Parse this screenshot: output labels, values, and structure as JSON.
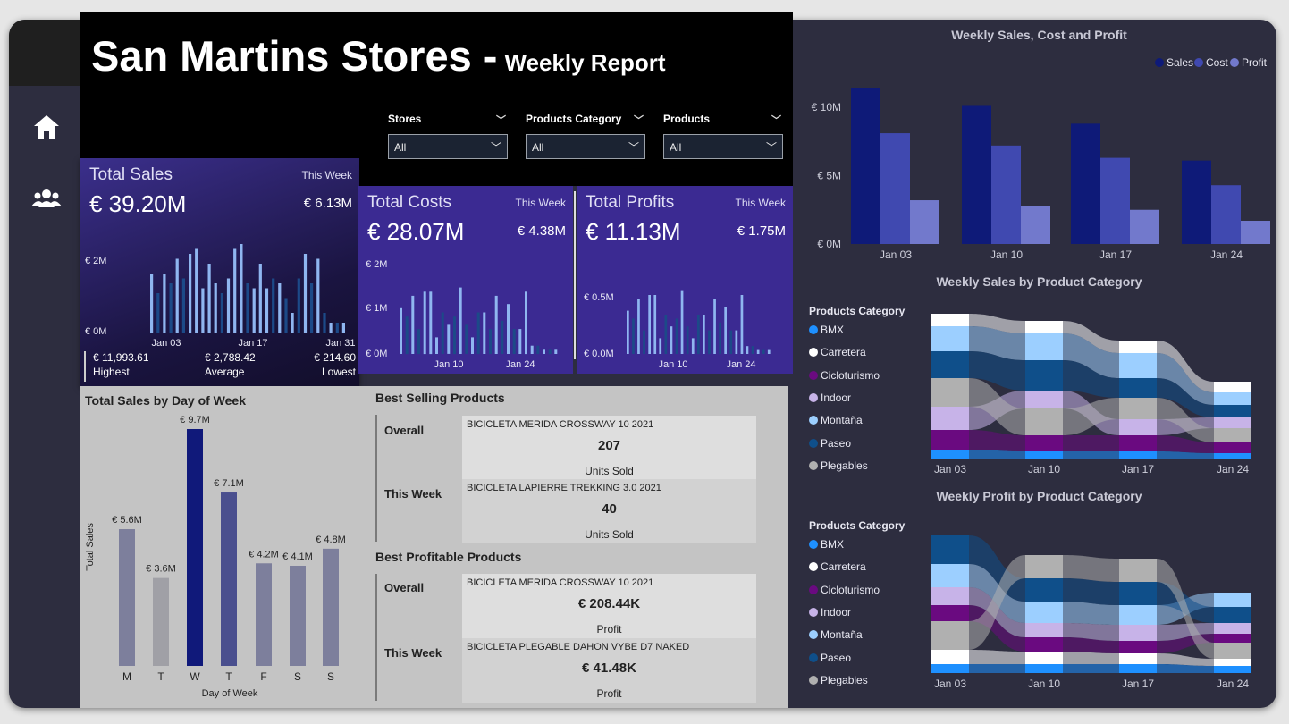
{
  "nav": {
    "home_icon": "home-icon",
    "people_icon": "people-icon"
  },
  "header": {
    "title": "San Martins Stores -",
    "subtitle": "Weekly Report"
  },
  "slicers": [
    {
      "label": "Stores",
      "value": "All"
    },
    {
      "label": "Products Category",
      "value": "All"
    },
    {
      "label": "Products",
      "value": "All"
    }
  ],
  "kpis": {
    "sales": {
      "name": "Total Sales",
      "period": "This Week",
      "total": "€ 39.20M",
      "week": "€ 6.13M",
      "y_ticks": [
        "€ 2M",
        "€ 0M"
      ],
      "x_ticks": [
        "Jan 03",
        "Jan 17",
        "Jan 31"
      ],
      "bars": [
        0.6,
        0.4,
        0.6,
        0.5,
        0.75,
        0.55,
        0.8,
        0.85,
        0.45,
        0.7,
        0.5,
        0.4,
        0.55,
        0.85,
        0.9,
        0.5,
        0.45,
        0.7,
        0.45,
        0.55,
        0.5,
        0.35,
        0.2,
        0.55,
        0.8,
        0.5,
        0.75,
        0.2,
        0.1,
        0.1,
        0.1
      ]
    },
    "costs": {
      "name": "Total Costs",
      "period": "This Week",
      "total": "€ 28.07M",
      "week": "€ 4.38M",
      "y_ticks": [
        "€ 2M",
        "€ 1M",
        "€ 0M"
      ],
      "x_ticks": [
        "Jan 10",
        "Jan 24"
      ],
      "bars": [
        0.55,
        0.45,
        0.7,
        0.3,
        0.75,
        0.75,
        0.2,
        0.5,
        0.35,
        0.45,
        0.8,
        0.35,
        0.2,
        0.5,
        0.5,
        0.3,
        0.7,
        0.4,
        0.6,
        0.3,
        0.3,
        0.75,
        0.1,
        0.1,
        0.05,
        0.05,
        0.05
      ]
    },
    "profits": {
      "name": "Total Profits",
      "period": "This Week",
      "total": "€ 11.13M",
      "week": "€ 1.75M",
      "y_ticks": [
        "€ 0.5M",
        "€ 0.0M"
      ],
      "x_ticks": [
        "Jan 10",
        "Jan 24"
      ],
      "bars": [
        0.55,
        0.45,
        0.7,
        0.3,
        0.75,
        0.75,
        0.2,
        0.5,
        0.35,
        0.45,
        0.8,
        0.35,
        0.2,
        0.5,
        0.5,
        0.3,
        0.7,
        0.4,
        0.6,
        0.3,
        0.3,
        0.75,
        0.1,
        0.1,
        0.05,
        0.05,
        0.05
      ]
    }
  },
  "stats": {
    "highest": "€ 11,993.61",
    "highest_label": "Highest",
    "average": "€ 2,788.42",
    "average_label": "Average",
    "lowest": "€ 214.60",
    "lowest_label": "Lowest"
  },
  "dow": {
    "title": "Total Sales by Day of Week",
    "ylabel": "Total Sales",
    "xlabel": "Day of Week",
    "days": [
      "M",
      "T",
      "W",
      "T",
      "F",
      "S",
      "S"
    ],
    "labels": [
      "€ 5.6M",
      "€ 3.6M",
      "€ 9.7M",
      "€ 7.1M",
      "€ 4.2M",
      "€ 4.1M",
      "€ 4.8M"
    ],
    "values": [
      5.6,
      3.6,
      9.7,
      7.1,
      4.2,
      4.1,
      4.8
    ],
    "colors": [
      "#7d7f9c",
      "#a0a0a6",
      "#10197a",
      "#4a4f8e",
      "#7d7f9c",
      "#7d7f9c",
      "#7d7f9c"
    ]
  },
  "best_selling": {
    "title": "Best Selling Products",
    "overall_label": "Overall",
    "overall_product": "BICICLETA MERIDA CROSSWAY 10 2021",
    "overall_value": "207",
    "overall_unit": "Units Sold",
    "week_label": "This Week",
    "week_product": "BICICLETA LAPIERRE TREKKING 3.0 2021",
    "week_value": "40",
    "week_unit": "Units Sold"
  },
  "best_profitable": {
    "title": "Best Profitable Products",
    "overall_label": "Overall",
    "overall_product": "BICICLETA MERIDA CROSSWAY 10 2021",
    "overall_value": "€ 208.44K",
    "overall_unit": "Profit",
    "week_label": "This Week",
    "week_product": "BICICLETA PLEGABLE DAHON VYBE D7 NAKED",
    "week_value": "€ 41.48K",
    "week_unit": "Profit"
  },
  "chart_data": [
    {
      "type": "bar",
      "title": "Weekly Sales, Cost and Profit",
      "categories": [
        "Jan 03",
        "Jan 10",
        "Jan 17",
        "Jan 24"
      ],
      "y_ticks": [
        "€ 10M",
        "€ 5M",
        "€ 0M"
      ],
      "ylim": [
        0,
        12
      ],
      "legend_position": "top-right",
      "series": [
        {
          "name": "Sales",
          "color": "#0e1a78",
          "values": [
            11.4,
            10.1,
            8.8,
            6.1
          ]
        },
        {
          "name": "Cost",
          "color": "#4049b0",
          "values": [
            8.1,
            7.2,
            6.3,
            4.3
          ]
        },
        {
          "name": "Profit",
          "color": "#7279cc",
          "values": [
            3.2,
            2.8,
            2.5,
            1.7
          ]
        }
      ]
    },
    {
      "type": "area",
      "title": "Weekly Sales by Product Category",
      "legend_title": "Products Category",
      "categories": [
        "Jan 03",
        "Jan 10",
        "Jan 17",
        "Jan 24"
      ],
      "series": [
        {
          "name": "BMX",
          "color": "#1e90ff"
        },
        {
          "name": "Carretera",
          "color": "#ffffff"
        },
        {
          "name": "Cicloturismo",
          "color": "#6a0a80"
        },
        {
          "name": "Indoor",
          "color": "#c7b3e8"
        },
        {
          "name": "Montaña",
          "color": "#9ccfff"
        },
        {
          "name": "Paseo",
          "color": "#0f4f8a"
        },
        {
          "name": "Plegables",
          "color": "#b0b0b0"
        }
      ]
    },
    {
      "type": "area",
      "title": "Weekly Profit by Product Category",
      "legend_title": "Products Category",
      "categories": [
        "Jan 03",
        "Jan 10",
        "Jan 17",
        "Jan 24"
      ],
      "series": [
        {
          "name": "BMX",
          "color": "#1e90ff"
        },
        {
          "name": "Carretera",
          "color": "#ffffff"
        },
        {
          "name": "Cicloturismo",
          "color": "#6a0a80"
        },
        {
          "name": "Indoor",
          "color": "#c7b3e8"
        },
        {
          "name": "Montaña",
          "color": "#9ccfff"
        },
        {
          "name": "Paseo",
          "color": "#0f4f8a"
        },
        {
          "name": "Plegables",
          "color": "#b0b0b0"
        }
      ]
    }
  ]
}
